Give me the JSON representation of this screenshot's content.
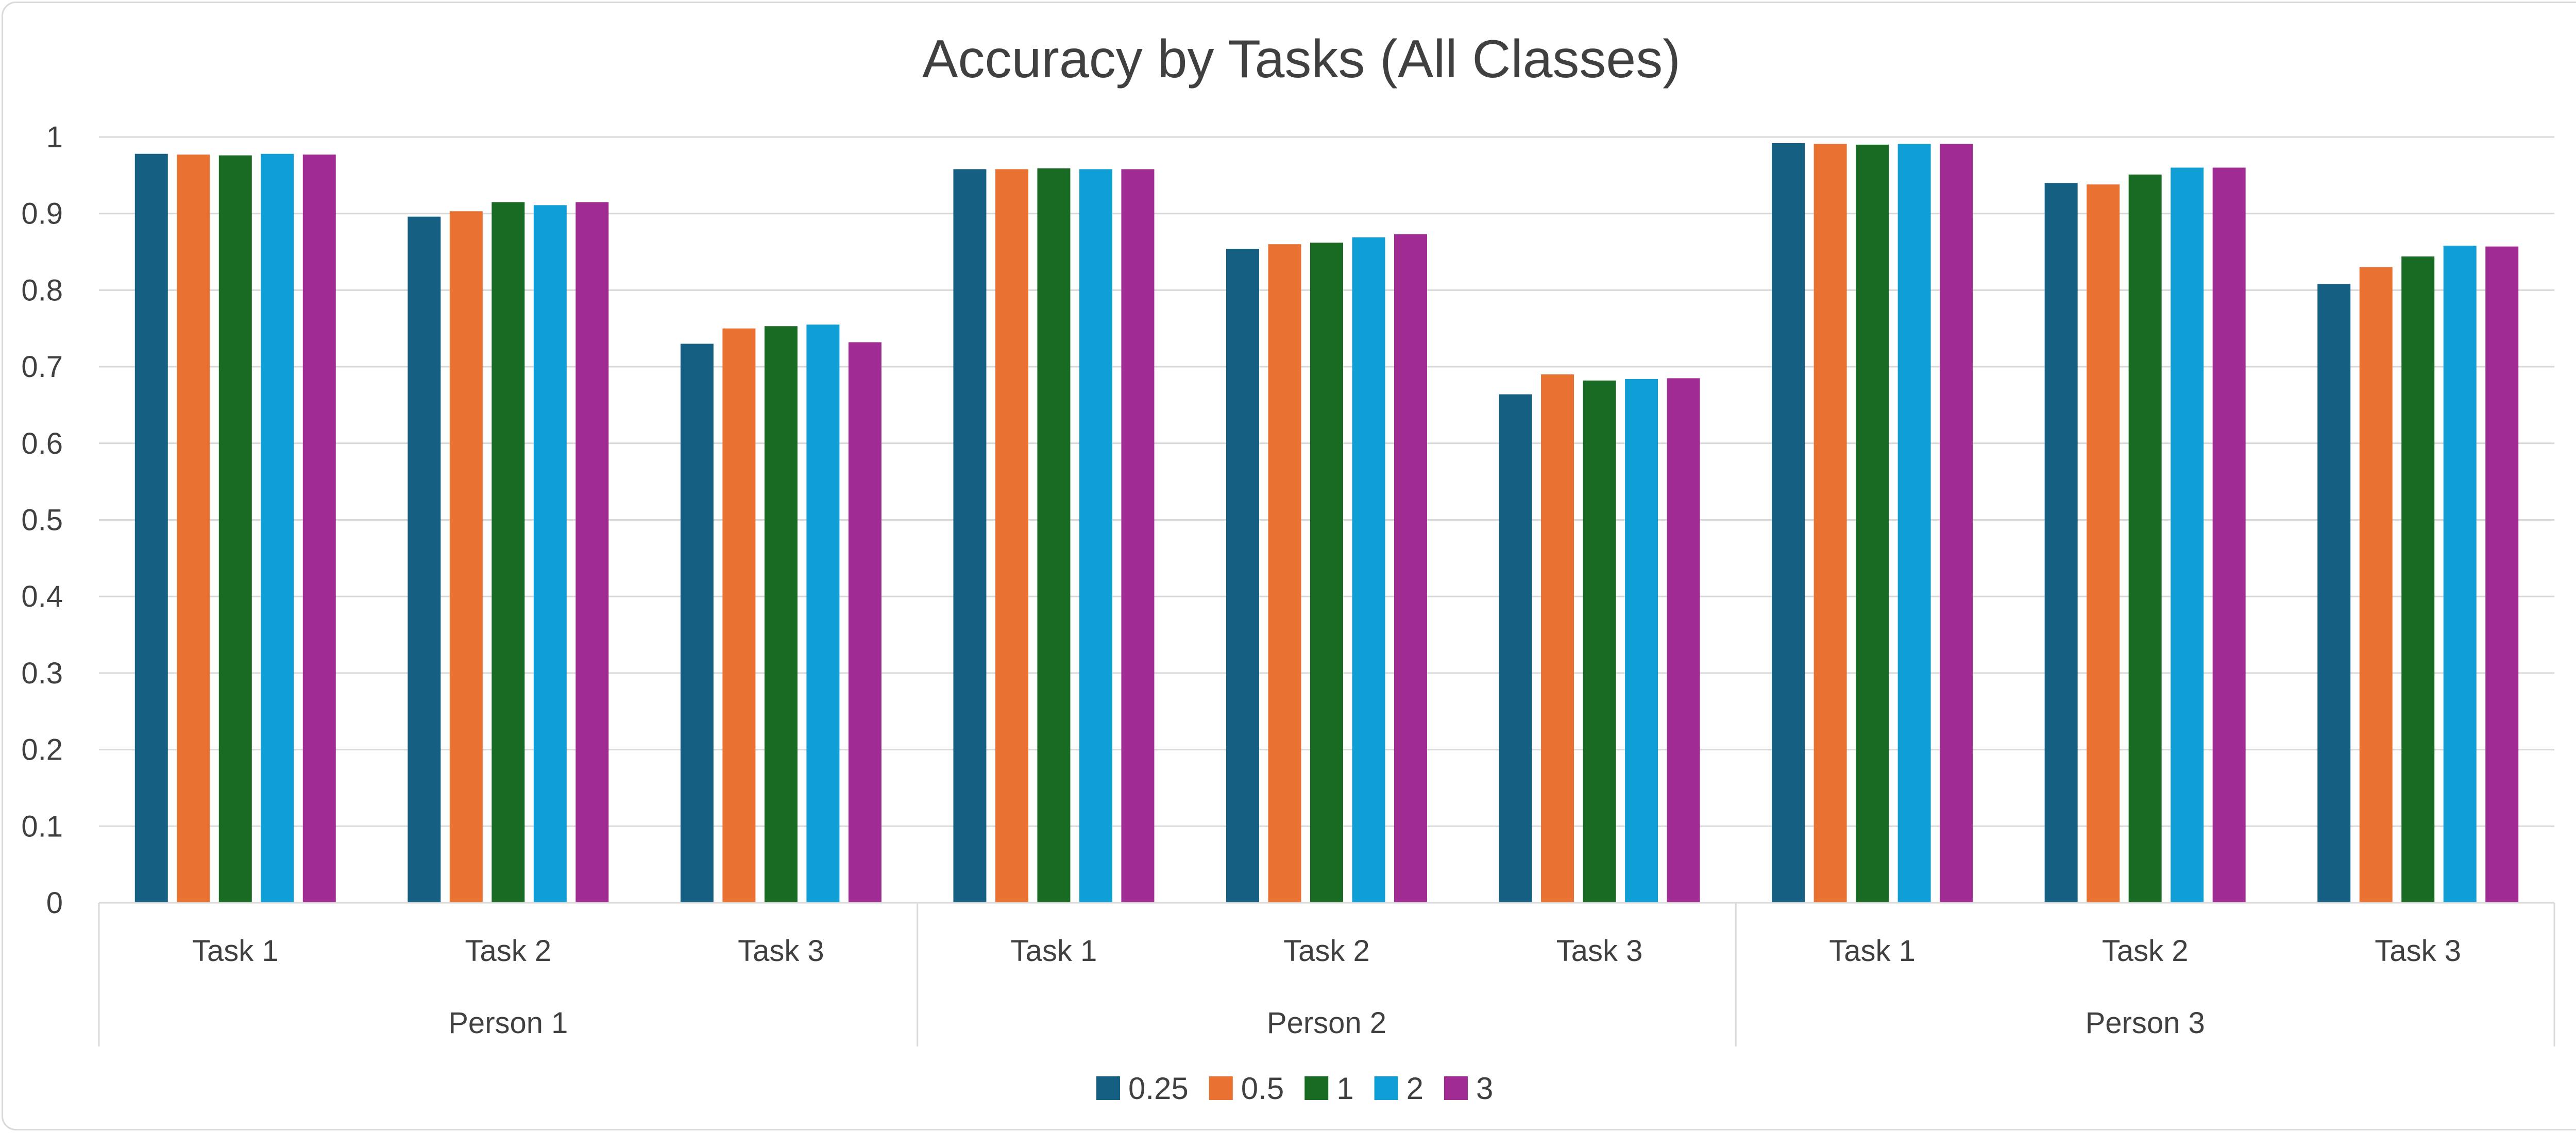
{
  "chart_data": {
    "type": "bar",
    "title": "Accuracy by Tasks (All Classes)",
    "xlabel": "",
    "ylabel": "",
    "ylim": [
      0,
      1
    ],
    "yticks": [
      "0",
      "0.1",
      "0.2",
      "0.3",
      "0.4",
      "0.5",
      "0.6",
      "0.7",
      "0.8",
      "0.9",
      "1"
    ],
    "groups": [
      "Person 1",
      "Person 2",
      "Person 3"
    ],
    "categories": [
      "Task 1",
      "Task 2",
      "Task 3",
      "Task 1",
      "Task 2",
      "Task 3",
      "Task 1",
      "Task 2",
      "Task 3"
    ],
    "series": [
      {
        "name": "0.25",
        "color": "#156082",
        "values": [
          0.978,
          0.896,
          0.73,
          0.958,
          0.854,
          0.664,
          0.992,
          0.94,
          0.808
        ]
      },
      {
        "name": "0.5",
        "color": "#E97132",
        "values": [
          0.977,
          0.903,
          0.75,
          0.958,
          0.86,
          0.69,
          0.991,
          0.938,
          0.83
        ]
      },
      {
        "name": "1",
        "color": "#196B24",
        "values": [
          0.976,
          0.915,
          0.753,
          0.959,
          0.862,
          0.682,
          0.99,
          0.951,
          0.844
        ]
      },
      {
        "name": "2",
        "color": "#0F9ED5",
        "values": [
          0.978,
          0.911,
          0.755,
          0.958,
          0.869,
          0.684,
          0.991,
          0.96,
          0.858
        ]
      },
      {
        "name": "3",
        "color": "#A02B93",
        "values": [
          0.977,
          0.915,
          0.732,
          0.958,
          0.873,
          0.685,
          0.991,
          0.96,
          0.857
        ]
      }
    ],
    "grid": true,
    "legend": "bottom"
  }
}
